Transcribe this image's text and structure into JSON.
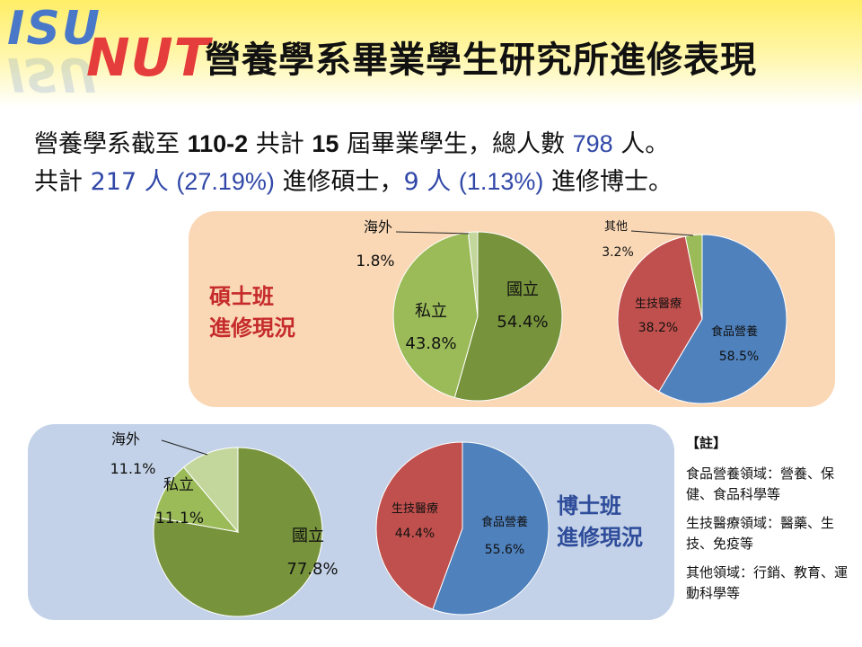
{
  "logo": {
    "part1": "ISU",
    "part2": "NUT"
  },
  "title": "營養學系畢業學生研究所進修表現",
  "intro": {
    "line1": {
      "a": "營養學系截至 ",
      "term": "110-2",
      "b": " 共計 ",
      "cohorts": "15",
      "c": " 屆畢業學生，總人數 ",
      "total": "798",
      "d": " 人。"
    },
    "line2": {
      "a": "共計 ",
      "masters_count": "217 人",
      "masters_pct": "(27.19%)",
      "b": " 進修碩士，",
      "doctoral_count": "9 人",
      "doctoral_pct": "(1.13%)",
      "c": " 進修博士。"
    }
  },
  "sections": {
    "masters": {
      "line1": "碩士班",
      "line2": "進修現況"
    },
    "doctoral": {
      "line1": "博士班",
      "line2": "進修現況"
    }
  },
  "notes": {
    "title": "【註】",
    "items": [
      "食品營養領域：營養、保健、食品科學等",
      "生技醫療領域：醫藥、生技、免疫等",
      "其他領域：行銷、教育、運動科學等"
    ]
  },
  "chart_data": [
    {
      "type": "pie",
      "title": "",
      "series": [
        {
          "values": [
            54.4,
            43.8,
            1.8
          ]
        }
      ],
      "categories": [
        "國立",
        "私立",
        "海外"
      ],
      "labels": [
        "54.4%",
        "43.8%",
        "1.8%"
      ],
      "colors": [
        "#77933c",
        "#9bbb59",
        "#c3d69b"
      ],
      "legend": "none"
    },
    {
      "type": "pie",
      "title": "",
      "series": [
        {
          "values": [
            58.5,
            38.2,
            3.2
          ]
        }
      ],
      "categories": [
        "食品營養",
        "生技醫療",
        "其他"
      ],
      "labels": [
        "58.5%",
        "38.2%",
        "3.2%"
      ],
      "colors": [
        "#4f81bd",
        "#c0504d",
        "#9bbb59"
      ],
      "legend": "none"
    },
    {
      "type": "pie",
      "title": "",
      "series": [
        {
          "values": [
            77.8,
            11.1,
            11.1
          ]
        }
      ],
      "categories": [
        "國立",
        "私立",
        "海外"
      ],
      "labels": [
        "77.8%",
        "11.1%",
        "11.1%"
      ],
      "colors": [
        "#77933c",
        "#9bbb59",
        "#c3d69b"
      ],
      "legend": "none"
    },
    {
      "type": "pie",
      "title": "",
      "series": [
        {
          "values": [
            55.6,
            44.4
          ]
        }
      ],
      "categories": [
        "食品營養",
        "生技醫療"
      ],
      "labels": [
        "55.6%",
        "44.4%"
      ],
      "colors": [
        "#4f81bd",
        "#c0504d"
      ],
      "legend": "none"
    }
  ]
}
